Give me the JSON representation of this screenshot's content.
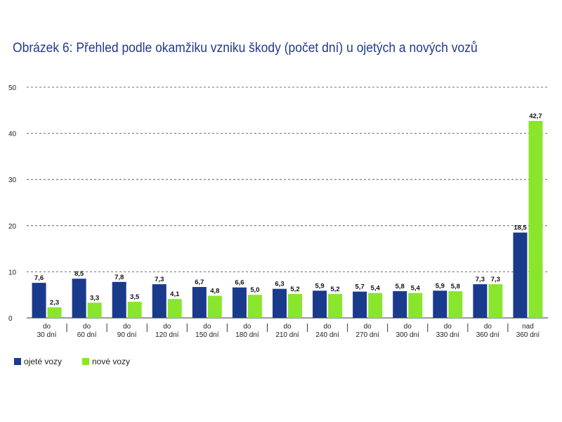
{
  "chart_data": {
    "type": "bar",
    "title": "Obrázek 6: Přehled podle okamžiku vzniku škody (počet dní) u ojetých a nových vozů",
    "categories": [
      [
        "do",
        "30 dní"
      ],
      [
        "do",
        "60 dní"
      ],
      [
        "do",
        "90 dní"
      ],
      [
        "do",
        "120 dní"
      ],
      [
        "do",
        "150 dní"
      ],
      [
        "do",
        "180 dní"
      ],
      [
        "do",
        "210 dní"
      ],
      [
        "do",
        "240 dní"
      ],
      [
        "do",
        "270 dní"
      ],
      [
        "do",
        "300 dní"
      ],
      [
        "do",
        "330 dní"
      ],
      [
        "do",
        "360 dní"
      ],
      [
        "nad",
        "360 dní"
      ]
    ],
    "series": [
      {
        "name": "ojeté vozy",
        "color": "#1a3a8c",
        "values": [
          7.6,
          8.5,
          7.8,
          7.3,
          6.7,
          6.6,
          6.3,
          5.9,
          5.7,
          5.8,
          5.9,
          7.3,
          18.5
        ],
        "labels": [
          "7,6",
          "8,5",
          "7,8",
          "7,3",
          "6,7",
          "6,6",
          "6,3",
          "5,9",
          "5,7",
          "5,8",
          "5,9",
          "7,3",
          "18,5"
        ]
      },
      {
        "name": "nové vozy",
        "color": "#8ae62c",
        "values": [
          2.3,
          3.3,
          3.5,
          4.1,
          4.8,
          5.0,
          5.2,
          5.2,
          5.4,
          5.4,
          5.8,
          7.3,
          42.7
        ],
        "labels": [
          "2,3",
          "3,3",
          "3,5",
          "4,1",
          "4,8",
          "5,0",
          "5,2",
          "5,2",
          "5,4",
          "5,4",
          "5,8",
          "7,3",
          "42,7"
        ]
      }
    ],
    "y_ticks": [
      "0",
      "10",
      "20",
      "30",
      "40",
      "50"
    ],
    "ylim": [
      0,
      50
    ],
    "xlabel": "",
    "ylabel": "",
    "grid": "dashed horizontal",
    "legend_position": "bottom-left"
  }
}
